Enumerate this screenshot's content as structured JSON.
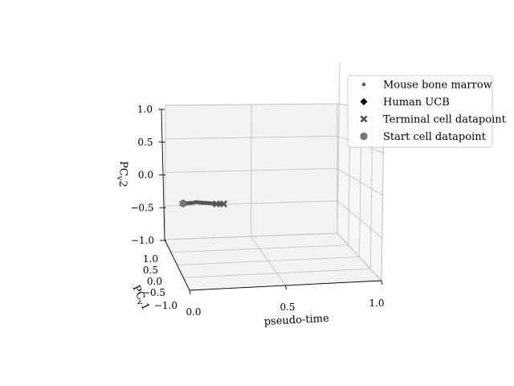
{
  "chart_data": {
    "type": "scatter",
    "projection": "3d",
    "title": "",
    "xlabel": "pseudo-time",
    "ylabel": "PC_v1",
    "zlabel": "PC_v2",
    "xlim": [
      0.0,
      1.0
    ],
    "ylim": [
      -1.0,
      1.0
    ],
    "zlim": [
      -1.0,
      1.0
    ],
    "x_ticks": [
      "0.0",
      "0.5",
      "1.0"
    ],
    "y_ticks": [
      "1.0",
      "0.5",
      "0.0",
      "−0.5",
      "−1.0"
    ],
    "z_ticks": [
      "1.0",
      "0.5",
      "0.0",
      "−0.5",
      "−1.0"
    ],
    "grid": true,
    "legend_position": "top-right",
    "series": [
      {
        "name": "Mouse bone marrow",
        "marker": "dot",
        "color": "#555555",
        "points": [
          {
            "x": 0.0,
            "z": -0.44
          },
          {
            "x": 0.015,
            "z": -0.435
          },
          {
            "x": 0.03,
            "z": -0.43
          },
          {
            "x": 0.045,
            "z": -0.425
          },
          {
            "x": 0.06,
            "z": -0.41
          },
          {
            "x": 0.075,
            "z": -0.4
          },
          {
            "x": 0.09,
            "z": -0.415
          },
          {
            "x": 0.105,
            "z": -0.42
          },
          {
            "x": 0.12,
            "z": -0.425
          },
          {
            "x": 0.135,
            "z": -0.43
          },
          {
            "x": 0.15,
            "z": -0.44
          },
          {
            "x": 0.165,
            "z": -0.45
          },
          {
            "x": 0.18,
            "z": -0.455
          },
          {
            "x": 0.195,
            "z": -0.46
          },
          {
            "x": 0.21,
            "z": -0.46
          }
        ]
      },
      {
        "name": "Human UCB",
        "marker": "diamond",
        "color": "#000000",
        "points": []
      },
      {
        "name": "Terminal cell datapoint",
        "marker": "x",
        "color": "#555555",
        "points": [
          {
            "x": 0.18,
            "z": -0.46
          },
          {
            "x": 0.22,
            "z": -0.46
          }
        ]
      },
      {
        "name": "Start cell datapoint",
        "marker": "hexagon",
        "color": "#777777",
        "points": [
          {
            "x": 0.0,
            "z": -0.44
          }
        ]
      }
    ]
  }
}
